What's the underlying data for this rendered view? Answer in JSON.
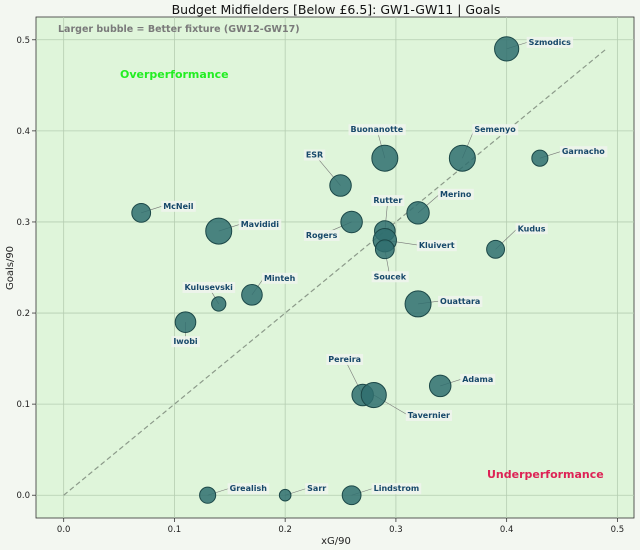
{
  "chart_data": {
    "type": "scatter",
    "title": "Budget Midfielders [Below £6.5]: GW1-GW11 | Goals",
    "xlabel": "xG/90",
    "ylabel": "Goals/90",
    "xlim": [
      -0.025,
      0.515
    ],
    "ylim": [
      -0.025,
      0.525
    ],
    "xticks": [
      "0.0",
      "0.1",
      "0.2",
      "0.3",
      "0.4",
      "0.5"
    ],
    "yticks": [
      "0.0",
      "0.1",
      "0.2",
      "0.3",
      "0.4",
      "0.5"
    ],
    "grid": true,
    "reference_line": "y = x",
    "annotations": {
      "bubble_note": "Larger bubble = Better fixture (GW12-GW17)",
      "over": "Overperformance",
      "under": "Underperformance"
    },
    "colors": {
      "plot_bg": "#dff5da",
      "bubble_fill": "#2f6e6e",
      "bubble_edge": "#1c4848",
      "label_text": "#17486a",
      "over": "#22ee22",
      "under": "#dd2255"
    },
    "points": [
      {
        "name": "Szmodics",
        "x": 0.4,
        "y": 0.49,
        "size": 0.9
      },
      {
        "name": "Buonanotte",
        "x": 0.29,
        "y": 0.37,
        "size": 1.0
      },
      {
        "name": "Semenyo",
        "x": 0.36,
        "y": 0.37,
        "size": 1.0
      },
      {
        "name": "Garnacho",
        "x": 0.43,
        "y": 0.37,
        "size": 0.45
      },
      {
        "name": "ESR",
        "x": 0.25,
        "y": 0.34,
        "size": 0.75
      },
      {
        "name": "McNeil",
        "x": 0.07,
        "y": 0.31,
        "size": 0.6
      },
      {
        "name": "Mavididi",
        "x": 0.14,
        "y": 0.29,
        "size": 1.0
      },
      {
        "name": "Rogers",
        "x": 0.26,
        "y": 0.3,
        "size": 0.75
      },
      {
        "name": "Rutter",
        "x": 0.29,
        "y": 0.29,
        "size": 0.7
      },
      {
        "name": "Merino",
        "x": 0.32,
        "y": 0.31,
        "size": 0.8
      },
      {
        "name": "Kluivert",
        "x": 0.29,
        "y": 0.28,
        "size": 0.85
      },
      {
        "name": "Soucek",
        "x": 0.29,
        "y": 0.27,
        "size": 0.6
      },
      {
        "name": "Kudus",
        "x": 0.39,
        "y": 0.27,
        "size": 0.55
      },
      {
        "name": "Kulusevski",
        "x": 0.14,
        "y": 0.21,
        "size": 0.35
      },
      {
        "name": "Minteh",
        "x": 0.17,
        "y": 0.22,
        "size": 0.7
      },
      {
        "name": "Iwobi",
        "x": 0.11,
        "y": 0.19,
        "size": 0.7
      },
      {
        "name": "Ouattara",
        "x": 0.32,
        "y": 0.21,
        "size": 1.0
      },
      {
        "name": "Pereira",
        "x": 0.27,
        "y": 0.11,
        "size": 0.75
      },
      {
        "name": "Tavernier",
        "x": 0.28,
        "y": 0.11,
        "size": 0.95
      },
      {
        "name": "Adama",
        "x": 0.34,
        "y": 0.12,
        "size": 0.75
      },
      {
        "name": "Grealish",
        "x": 0.13,
        "y": 0.0,
        "size": 0.45
      },
      {
        "name": "Sarr",
        "x": 0.2,
        "y": 0.0,
        "size": 0.2
      },
      {
        "name": "Lindstrom",
        "x": 0.26,
        "y": 0.0,
        "size": 0.6
      }
    ]
  }
}
